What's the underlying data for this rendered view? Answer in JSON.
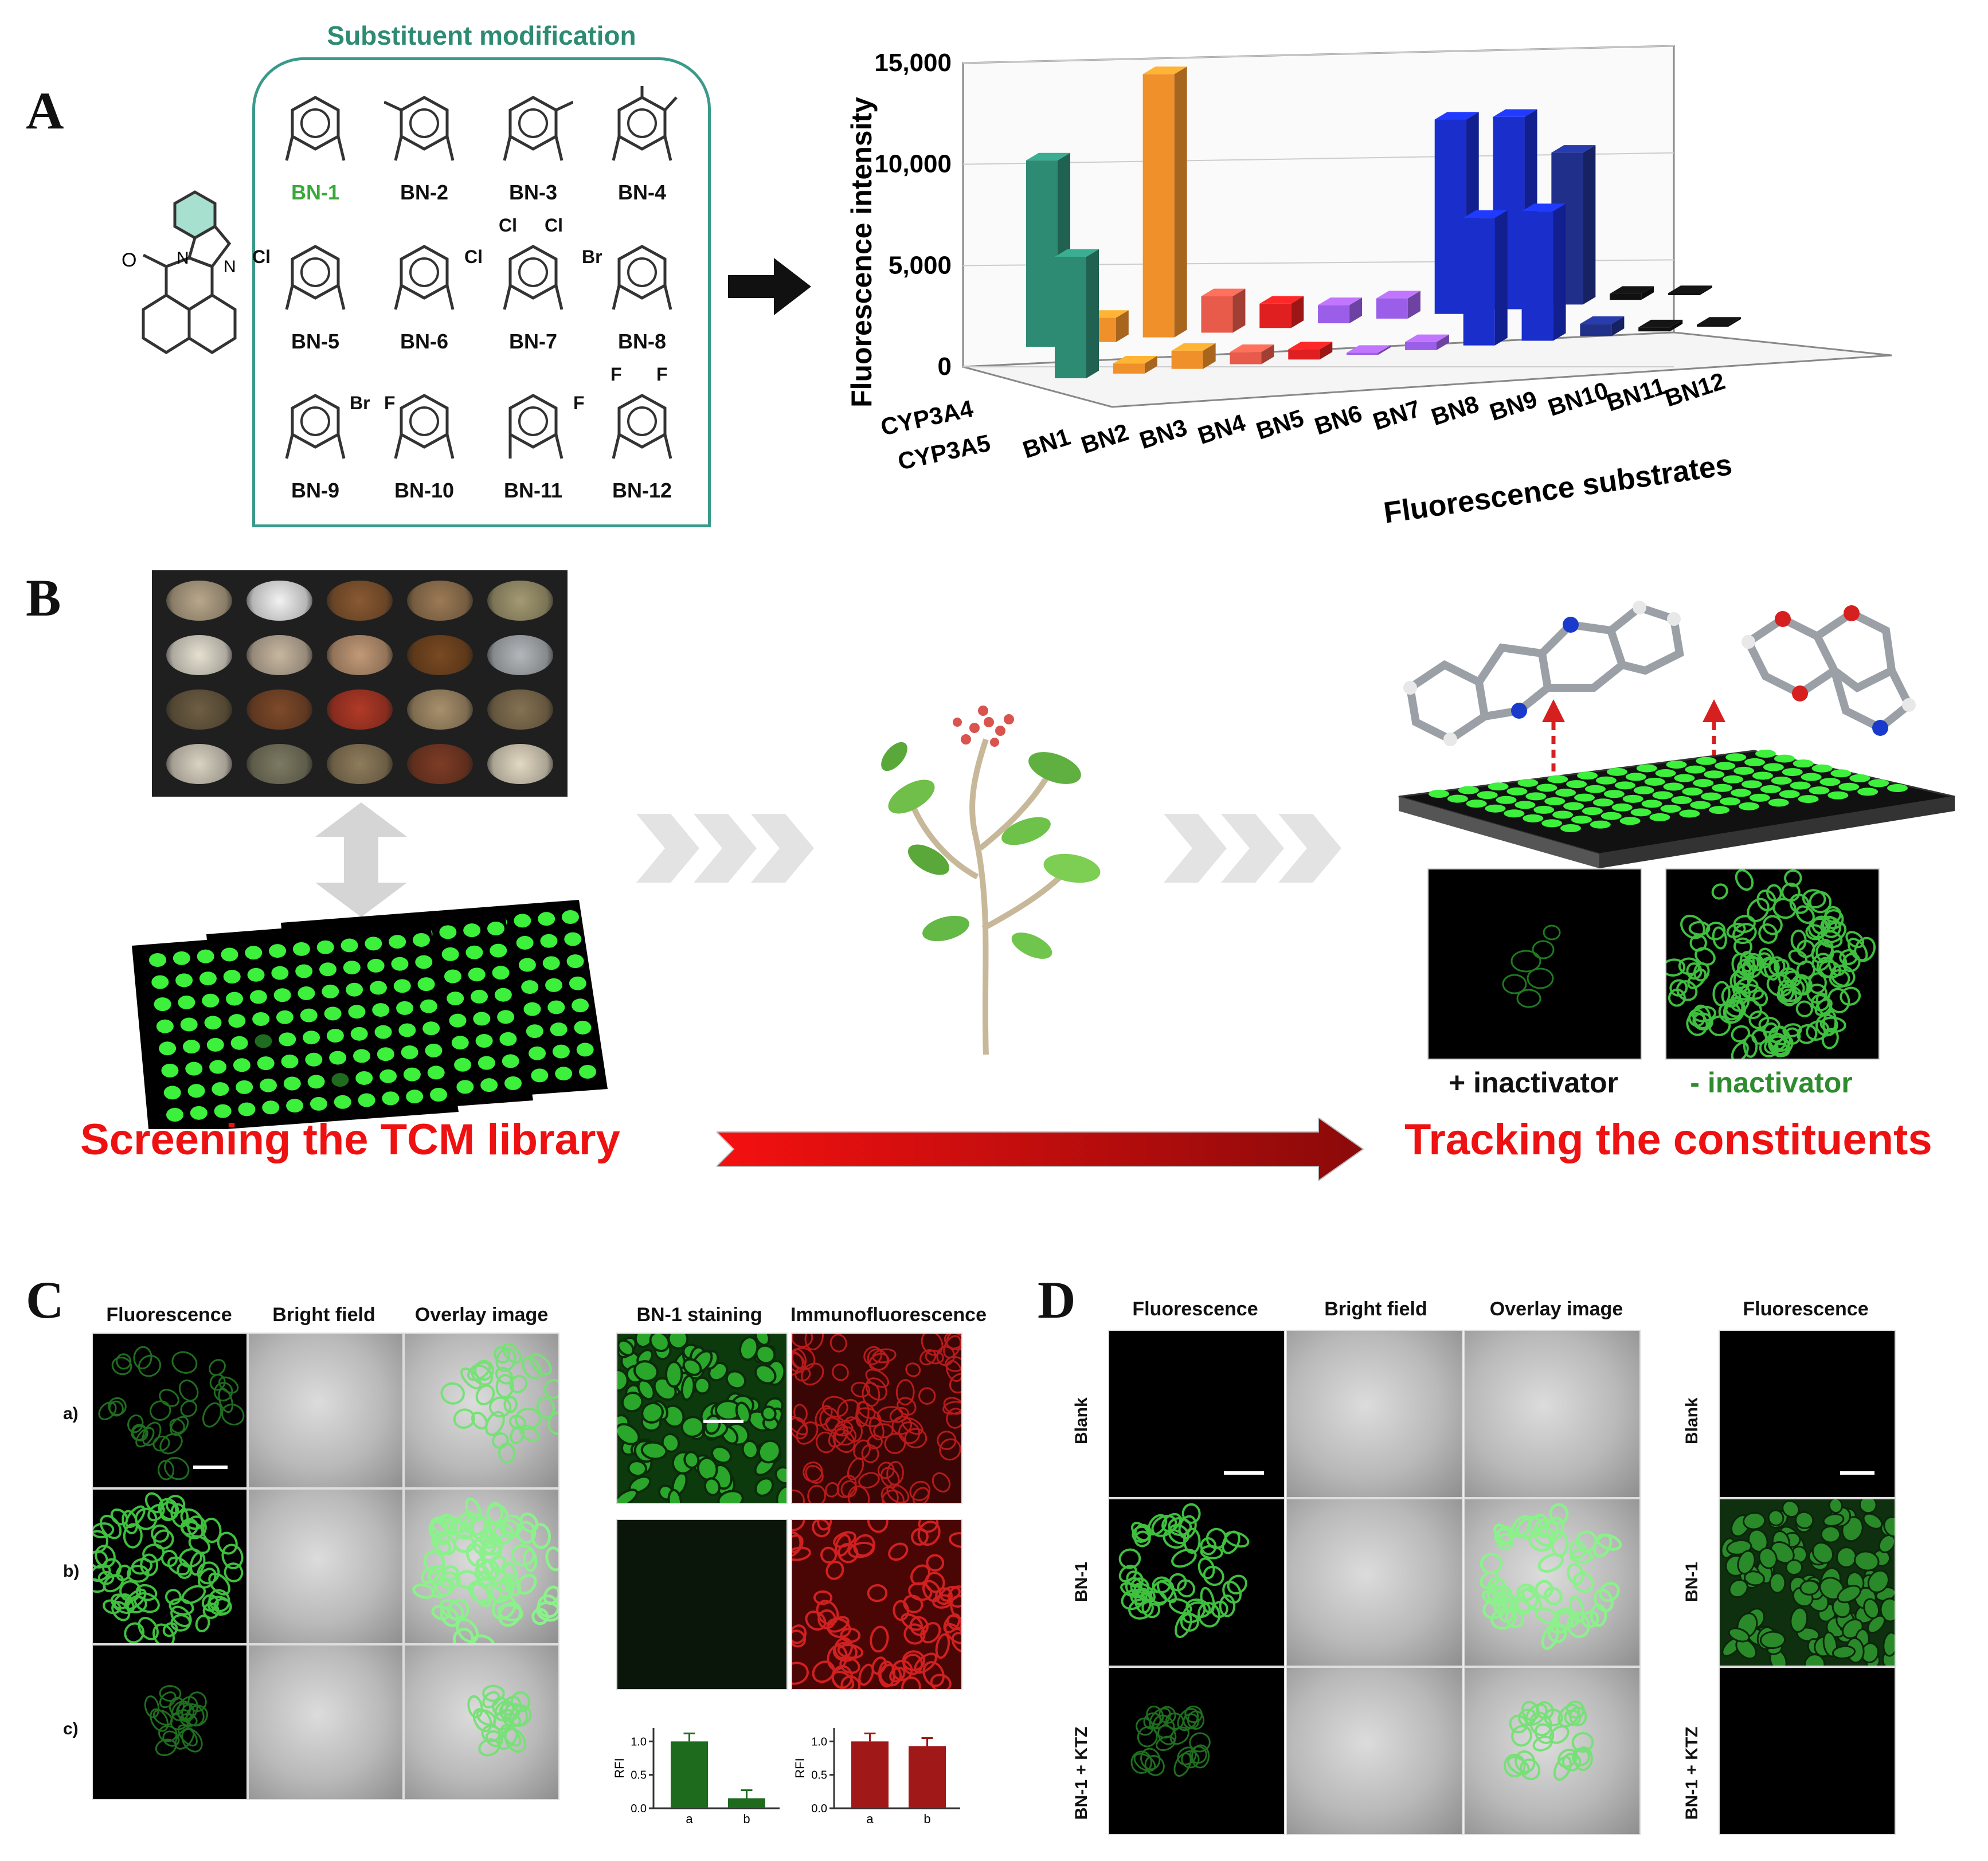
{
  "panel_a": {
    "letter": "A",
    "box_title": "Substituent modification",
    "compounds": [
      "BN-1",
      "BN-2",
      "BN-3",
      "BN-4",
      "BN-5",
      "BN-6",
      "BN-7",
      "BN-8",
      "BN-9",
      "BN-10",
      "BN-11",
      "BN-12"
    ],
    "substituent_labels": [
      "Cl",
      "Cl",
      "Cl",
      "Cl",
      "Br",
      "Br",
      "F",
      "F",
      "F",
      "F"
    ],
    "core_atoms": [
      "O",
      "N",
      "N"
    ],
    "chart_data": {
      "type": "bar",
      "title": "",
      "ylabel": "Fluorescence intensity",
      "xlabel": "Fluorescence substrates",
      "categories": [
        "BN1",
        "BN2",
        "BN3",
        "BN4",
        "BN5",
        "BN6",
        "BN7",
        "BN8",
        "BN9",
        "BN10",
        "BN11",
        "BN12"
      ],
      "yticks": [
        "0",
        "5,000",
        "10,000",
        "15,000"
      ],
      "ylim": [
        0,
        15000
      ],
      "series": [
        {
          "name": "CYP3A4",
          "values": [
            9200,
            1200,
            13000,
            1800,
            1200,
            900,
            1000,
            9600,
            9500,
            7500,
            300,
            100
          ]
        },
        {
          "name": "CYP3A5",
          "values": [
            6000,
            500,
            900,
            600,
            500,
            100,
            400,
            6300,
            6400,
            600,
            200,
            100
          ]
        }
      ],
      "colors": [
        "#2e8b73",
        "#f0902a",
        "#f0902a",
        "#e85a4a",
        "#e02020",
        "#9b5ee8",
        "#9b5ee8",
        "#1a2ecc",
        "#1a2ecc",
        "#20308a",
        "#111111",
        "#111111"
      ]
    }
  },
  "panel_b": {
    "letter": "B",
    "left_caption": "Screening the TCM library",
    "right_caption": "Tracking the constituents",
    "plus_label": "+ inactivator",
    "minus_label": "- inactivator"
  },
  "panel_c": {
    "letter": "C",
    "col_headers": [
      "Fluorescence",
      "Bright field",
      "Overlay image"
    ],
    "right_headers": [
      "BN-1 staining",
      "Immunofluorescence"
    ],
    "row_labels": [
      "a)",
      "b)",
      "c)"
    ],
    "bar_charts": [
      {
        "ylabel": "RFI",
        "categories": [
          "a",
          "b"
        ],
        "values": [
          1.0,
          0.15
        ],
        "yticks": [
          "0.0",
          "0.5",
          "1.0"
        ],
        "color": "#1e6b1e"
      },
      {
        "ylabel": "RFI",
        "categories": [
          "a",
          "b"
        ],
        "values": [
          1.0,
          0.93
        ],
        "yticks": [
          "0.0",
          "0.5",
          "1.0"
        ],
        "color": "#a01818"
      }
    ]
  },
  "panel_d": {
    "letter": "D",
    "col_headers": [
      "Fluorescence",
      "Bright field",
      "Overlay image"
    ],
    "right_header": "Fluorescence",
    "row_labels": [
      "Blank",
      "BN-1",
      "BN-1 + KTZ"
    ]
  }
}
